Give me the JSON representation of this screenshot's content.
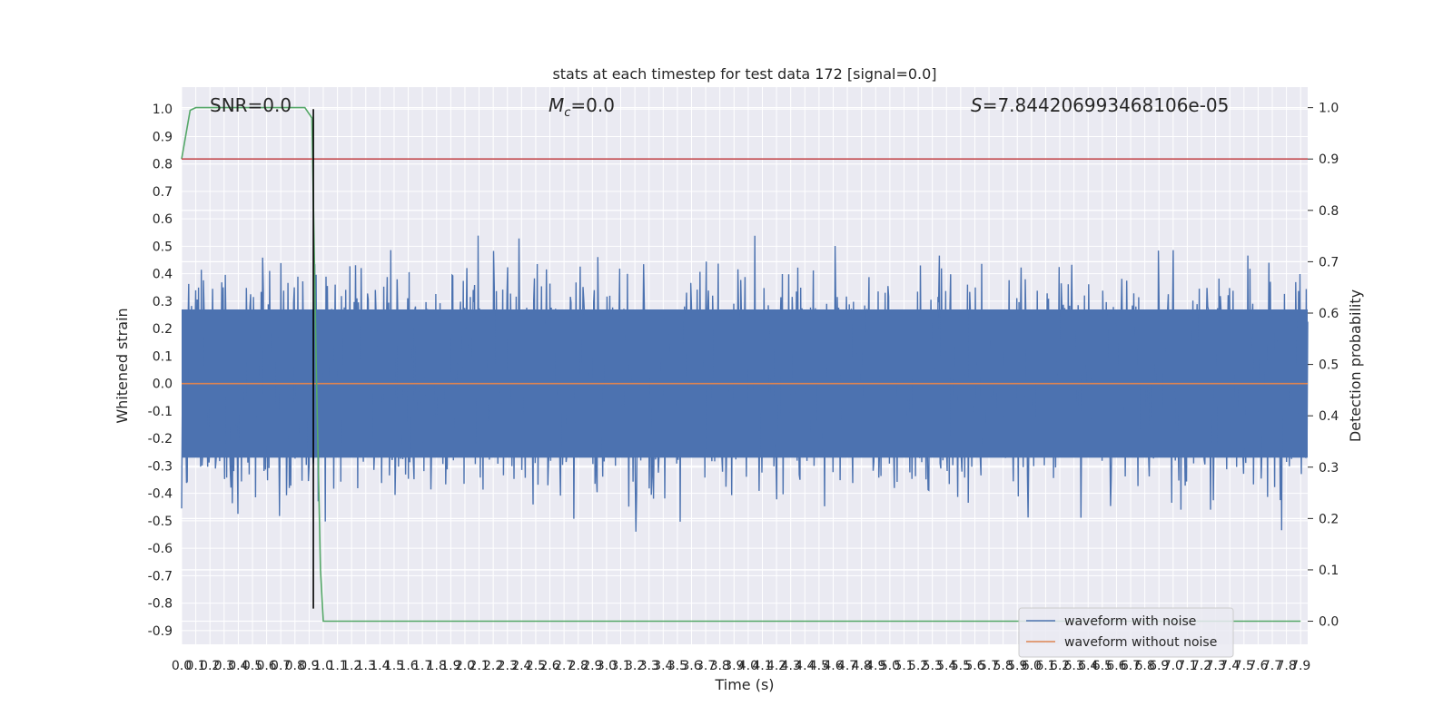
{
  "chart_data": {
    "type": "line",
    "title": "stats at each timestep for test data 172 [signal=0.0]",
    "xlabel": "Time (s)",
    "ylabel": "Whitened strain",
    "ylabel_right": "Detection probability",
    "xlim": [
      0.0,
      7.95
    ],
    "ylim": [
      -0.95,
      1.08
    ],
    "ylim_right": [
      -0.045,
      1.04
    ],
    "x_ticks": [
      "0.0",
      "0.1",
      "0.2",
      "0.3",
      "0.4",
      "0.5",
      "0.6",
      "0.7",
      "0.8",
      "0.9",
      "1.0",
      "1.1",
      "1.2",
      "1.3",
      "1.4",
      "1.5",
      "1.6",
      "1.7",
      "1.8",
      "1.9",
      "2.0",
      "2.1",
      "2.2",
      "2.3",
      "2.4",
      "2.5",
      "2.6",
      "2.7",
      "2.8",
      "2.9",
      "3.0",
      "3.1",
      "3.2",
      "3.3",
      "3.4",
      "3.5",
      "3.6",
      "3.7",
      "3.8",
      "3.9",
      "4.0",
      "4.1",
      "4.2",
      "4.3",
      "4.4",
      "4.5",
      "4.6",
      "4.7",
      "4.8",
      "4.9",
      "5.0",
      "5.1",
      "5.2",
      "5.3",
      "5.4",
      "5.5",
      "5.6",
      "5.7",
      "5.8",
      "5.9",
      "6.0",
      "6.1",
      "6.2",
      "6.3",
      "6.4",
      "6.5",
      "6.6",
      "6.7",
      "6.8",
      "6.9",
      "7.0",
      "7.1",
      "7.2",
      "7.3",
      "7.4",
      "7.5",
      "7.6",
      "7.7",
      "7.8",
      "7.9"
    ],
    "y_ticks": [
      "1.0",
      "0.9",
      "0.8",
      "0.7",
      "0.6",
      "0.5",
      "0.4",
      "0.3",
      "0.2",
      "0.1",
      "0.0",
      "-0.1",
      "-0.2",
      "-0.3",
      "-0.4",
      "-0.5",
      "-0.6",
      "-0.7",
      "-0.8",
      "-0.9"
    ],
    "y_ticks_right": [
      "1.0",
      "0.9",
      "0.8",
      "0.7",
      "0.6",
      "0.5",
      "0.4",
      "0.3",
      "0.2",
      "0.1",
      "0.0"
    ],
    "grid": true,
    "legend_position": "lower-right",
    "series": [
      {
        "name": "waveform with noise",
        "color": "#4c72b0",
        "axis": "left",
        "kind": "noise",
        "band_core": 0.27,
        "peak_max": 1.0,
        "trough_min": -0.82,
        "samples": 1600
      },
      {
        "name": "waveform without noise",
        "color": "#dd8452",
        "axis": "left",
        "x": [
          0.0,
          7.95
        ],
        "values": [
          0.0,
          0.0
        ]
      },
      {
        "name": "",
        "color": "#55a868",
        "axis": "right",
        "x": [
          0.0,
          0.06,
          0.1,
          0.2,
          0.5,
          0.87,
          0.92,
          0.95,
          0.98,
          1.0,
          1.5,
          7.9
        ],
        "values": [
          0.9,
          0.995,
          1.0,
          1.0,
          1.0,
          1.0,
          0.98,
          0.5,
          0.1,
          0.0,
          0.0,
          0.0
        ]
      },
      {
        "name": "",
        "color": "#c44e52",
        "axis": "right",
        "x": [
          0.0,
          7.95
        ],
        "values": [
          0.9,
          0.9
        ]
      }
    ],
    "vline": {
      "x": 0.93,
      "ymin": -0.82,
      "ymax": 1.0,
      "color": "#000000"
    },
    "annotations": {
      "snr": "SNR=0.0",
      "mc_symbol": "M",
      "mc_sub": "c",
      "mc_value": "=0.0",
      "s_symbol": "S",
      "s_value": "=7.844206993468106e-05"
    }
  }
}
